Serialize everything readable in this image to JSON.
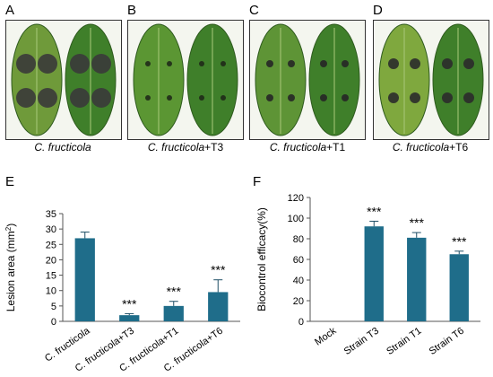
{
  "panels": [
    {
      "letter": "A",
      "species": "C. fructicola",
      "suffix": "",
      "leaf_color": "#6f9a3a",
      "lesion_color": "#3a3a3a"
    },
    {
      "letter": "B",
      "species": "C. fructicola",
      "suffix": "+T3",
      "leaf_color": "#5b9633",
      "lesion_color": "#1f2a18"
    },
    {
      "letter": "C",
      "species": "C. fructicola",
      "suffix": "+T1",
      "leaf_color": "#5e9436",
      "lesion_color": "#262626"
    },
    {
      "letter": "D",
      "species": "C. fructicola",
      "suffix": "+T6",
      "leaf_color": "#7fa83e",
      "lesion_color": "#2b2b2b"
    }
  ],
  "chart_data": [
    {
      "panel": "E",
      "type": "bar",
      "ylabel": "Lesion area (mm",
      "ylabel_sup": "2",
      "ylabel_end": ")",
      "categories": [
        "C. fructicola",
        "C. fructicola+T3",
        "C. fructicola+T1",
        "C. fructicola+T6"
      ],
      "values": [
        27,
        2,
        5,
        9.5
      ],
      "errors": [
        2,
        0.5,
        1.5,
        4
      ],
      "annotations": [
        "",
        "***",
        "***",
        "***"
      ],
      "ylim": [
        0,
        35
      ],
      "yticks": [
        "0",
        "5",
        "10",
        "15",
        "20",
        "25",
        "30",
        "35"
      ],
      "bar_color": "#1f6d8a"
    },
    {
      "panel": "F",
      "type": "bar",
      "ylabel": "Biocontrol efficacy(%)",
      "categories": [
        "Mock",
        "Strain T3",
        "Strain T1",
        "Strain T6"
      ],
      "values": [
        0,
        92,
        81,
        65
      ],
      "errors": [
        0,
        5,
        5,
        3
      ],
      "annotations": [
        "",
        "***",
        "***",
        "***"
      ],
      "ylim": [
        0,
        120
      ],
      "yticks": [
        "0",
        "20",
        "40",
        "60",
        "80",
        "100",
        "120"
      ],
      "bar_color": "#1f6d8a"
    }
  ]
}
